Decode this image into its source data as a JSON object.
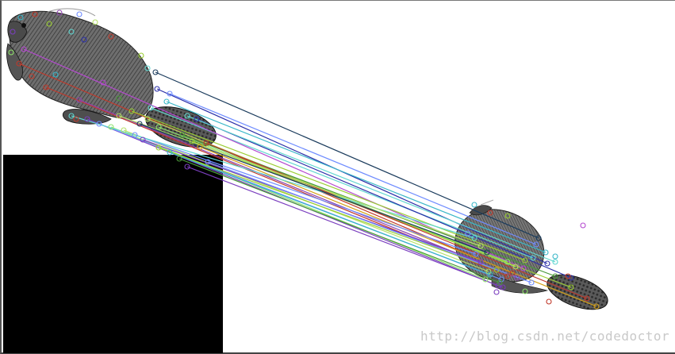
{
  "watermark": {
    "text": "http://blog.csdn.net/codedoctor"
  },
  "colors": {
    "background": "#ffffff",
    "padding": "#000000",
    "match_lines": [
      "#1a3b5c",
      "#2b2fa8",
      "#3ab7c8",
      "#5fd6d0",
      "#9acd32",
      "#b5e067",
      "#c0392b",
      "#7b3fbf",
      "#6f8cff",
      "#8fe36b",
      "#4a9a3a"
    ]
  }
}
